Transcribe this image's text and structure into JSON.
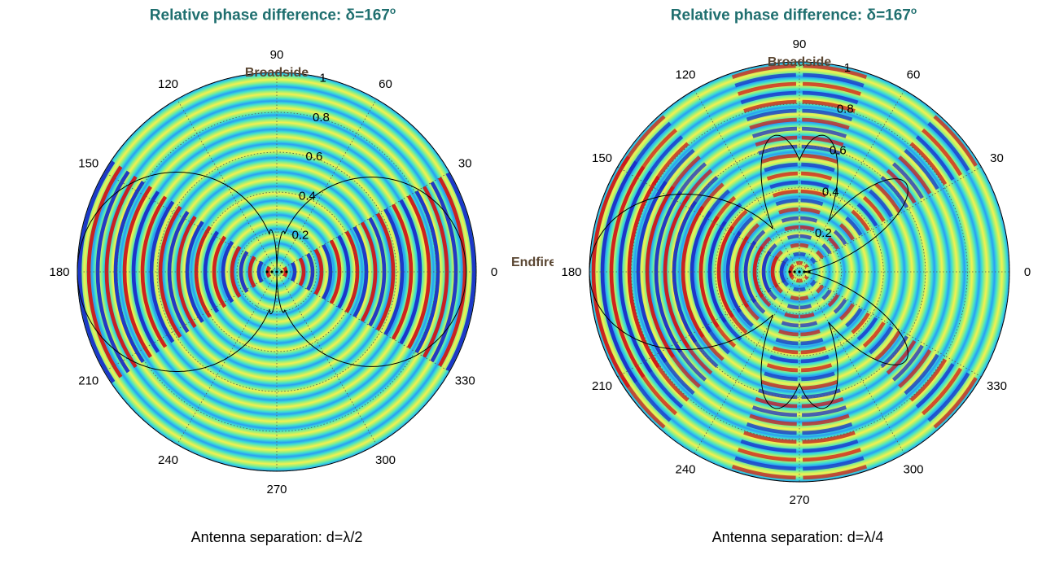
{
  "chart_data": [
    {
      "type": "polar",
      "title_prefix": "Relative phase difference: ",
      "title_symbol": "δ",
      "title_value": "=167",
      "title_degree": "o",
      "caption": "Antenna separation: d=λ/2",
      "angle_ticks": [
        "0",
        "30",
        "60",
        "90",
        "120",
        "150",
        "180",
        "210",
        "240",
        "270",
        "300",
        "330"
      ],
      "radial_ticks": [
        "0.2",
        "0.4",
        "0.6",
        "0.8",
        "1"
      ],
      "rlim": [
        0,
        1
      ],
      "annotations": {
        "top": "Broadside",
        "right": "Endfire"
      },
      "pattern": {
        "type": "array-factor",
        "spacing_wavelengths": 0.5,
        "phase_deg": 167
      },
      "field": "interference-colormap"
    },
    {
      "type": "polar",
      "title_prefix": "Relative phase difference: ",
      "title_symbol": "δ",
      "title_value": "=167",
      "title_degree": "o",
      "caption": "Antenna separation: d=λ/4",
      "angle_ticks": [
        "0",
        "30",
        "60",
        "90",
        "120",
        "150",
        "180",
        "210",
        "240",
        "270",
        "300",
        "330"
      ],
      "radial_ticks": [
        "0.2",
        "0.4",
        "0.6",
        "0.8",
        "1"
      ],
      "rlim": [
        0,
        1
      ],
      "annotations": {
        "top": "Broadside"
      },
      "pattern": {
        "type": "multi-lobe",
        "lobe_angles_deg": [
          180,
          40,
          80,
          100,
          260,
          280,
          320
        ],
        "main_lobe_deg": 180
      },
      "field": "interference-colormap"
    }
  ]
}
